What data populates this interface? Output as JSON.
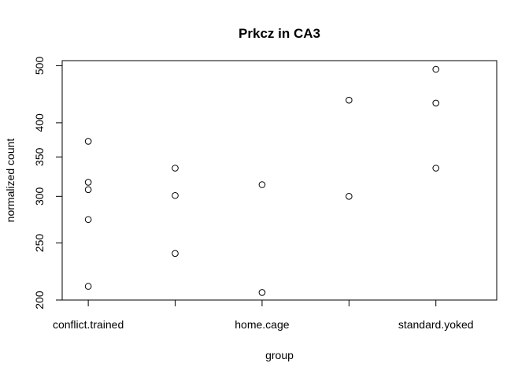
{
  "chart_data": {
    "type": "scatter",
    "title": "Prkcz in CA3",
    "xlabel": "group",
    "ylabel": "normalized count",
    "y_scale": "log",
    "ylim": [
      200,
      510
    ],
    "x_ticks": [
      1,
      2,
      3,
      4,
      5
    ],
    "x_tick_labels": [
      "conflict.trained",
      "",
      "home.cage",
      "",
      "standard.yoked"
    ],
    "y_ticks": [
      200,
      250,
      300,
      350,
      400,
      500
    ],
    "y_tick_labels": [
      "200",
      "250",
      "300",
      "350",
      "400",
      "500"
    ],
    "xlim": [
      0.7,
      5.7
    ],
    "grid": false,
    "legend": "none",
    "series": [
      {
        "points": [
          {
            "x": 1,
            "y": 372
          },
          {
            "x": 1,
            "y": 317
          },
          {
            "x": 1,
            "y": 308
          },
          {
            "x": 1,
            "y": 274
          },
          {
            "x": 1,
            "y": 211
          },
          {
            "x": 2,
            "y": 335
          },
          {
            "x": 2,
            "y": 301
          },
          {
            "x": 2,
            "y": 240
          },
          {
            "x": 3,
            "y": 314
          },
          {
            "x": 3,
            "y": 206
          },
          {
            "x": 4,
            "y": 437
          },
          {
            "x": 4,
            "y": 300
          },
          {
            "x": 5,
            "y": 493
          },
          {
            "x": 5,
            "y": 432
          },
          {
            "x": 5,
            "y": 335
          }
        ]
      }
    ]
  }
}
